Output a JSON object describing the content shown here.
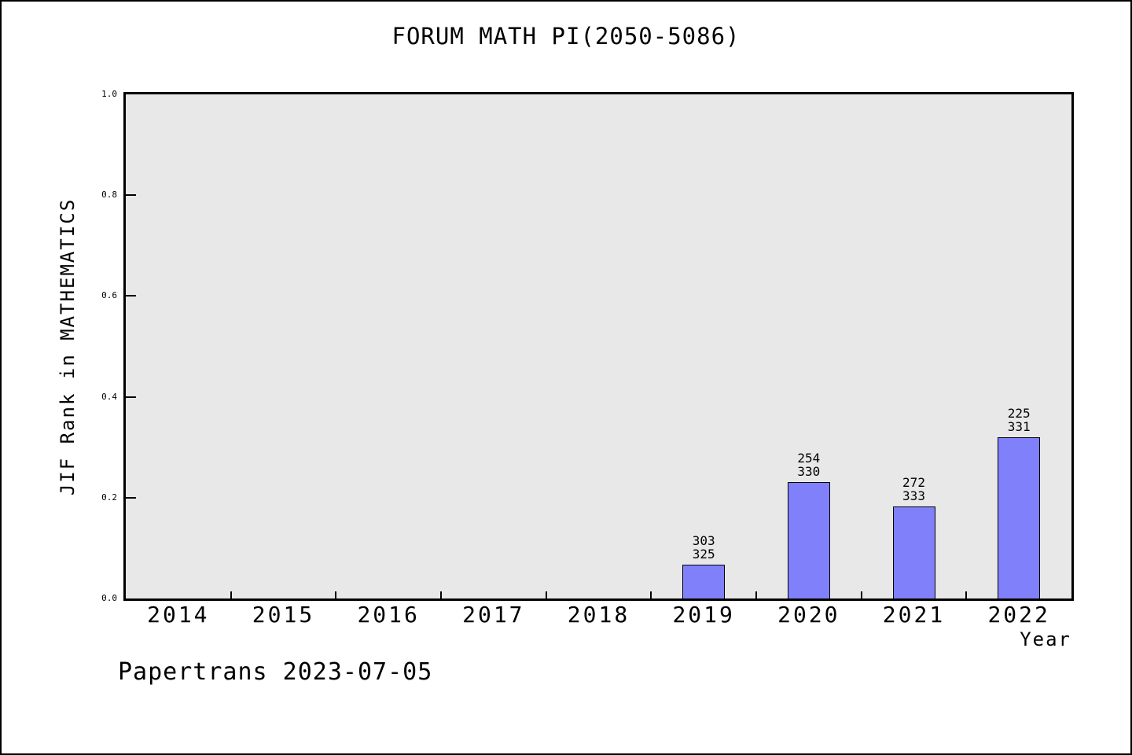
{
  "figure": {
    "background": "#ffffff",
    "frame_color": "#000000"
  },
  "chart_data": {
    "type": "bar",
    "title": "FORUM MATH PI(2050-5086)",
    "xlabel": "Year",
    "ylabel": "JIF Rank in MATHEMATICS",
    "footer": "Papertrans 2023-07-05",
    "categories": [
      "2014",
      "2015",
      "2016",
      "2017",
      "2018",
      "2019",
      "2020",
      "2021",
      "2022"
    ],
    "values": [
      0,
      0,
      0,
      0,
      0,
      0.0677,
      0.2303,
      0.1832,
      0.3202
    ],
    "bar_labels": [
      null,
      null,
      null,
      null,
      null,
      {
        "rank": "303",
        "total": "325"
      },
      {
        "rank": "254",
        "total": "330"
      },
      {
        "rank": "272",
        "total": "333"
      },
      {
        "rank": "225",
        "total": "331"
      }
    ],
    "ylim": [
      0,
      1
    ],
    "yticks": [
      "0.0",
      "0.2",
      "0.4",
      "0.6",
      "0.8",
      "1.0"
    ],
    "grid": "off",
    "legend": "none",
    "bar_color": "#8080fa",
    "bar_edge_color": "#000000",
    "plot_bg": "#e8e8e8",
    "text_color": "#000000"
  }
}
